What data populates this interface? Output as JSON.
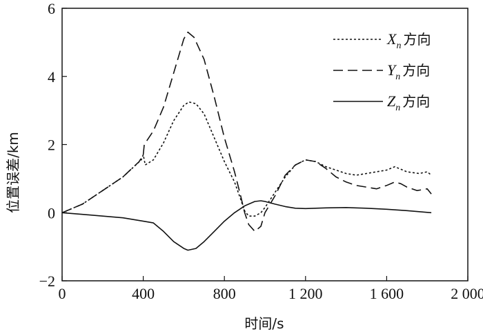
{
  "chart_data": {
    "type": "line",
    "title": "",
    "xlabel": "时间/s",
    "ylabel": "位置误差/km",
    "xlim": [
      0,
      2000
    ],
    "ylim": [
      -2,
      6
    ],
    "xticks": [
      0,
      400,
      800,
      1200,
      1600,
      2000
    ],
    "xtick_labels": [
      "0",
      "400",
      "800",
      "1 200",
      "1 600",
      "2 000"
    ],
    "yticks": [
      -2,
      0,
      2,
      4,
      6
    ],
    "ytick_labels": [
      "−2",
      "0",
      "2",
      "4",
      "6"
    ],
    "grid": false,
    "legend_position": "top-right",
    "series": [
      {
        "name": "Xn方向",
        "legend_var": "X",
        "legend_sub": "n",
        "legend_suffix": "方向",
        "dash": "3,3",
        "points": [
          [
            0,
            0
          ],
          [
            100,
            0.25
          ],
          [
            200,
            0.65
          ],
          [
            300,
            1.05
          ],
          [
            390,
            1.55
          ],
          [
            400,
            1.7
          ],
          [
            410,
            1.4
          ],
          [
            450,
            1.55
          ],
          [
            500,
            2.05
          ],
          [
            550,
            2.7
          ],
          [
            600,
            3.15
          ],
          [
            625,
            3.25
          ],
          [
            660,
            3.2
          ],
          [
            700,
            2.9
          ],
          [
            750,
            2.2
          ],
          [
            800,
            1.5
          ],
          [
            850,
            0.9
          ],
          [
            880,
            0.4
          ],
          [
            900,
            0.05
          ],
          [
            920,
            -0.1
          ],
          [
            950,
            -0.1
          ],
          [
            980,
            0.0
          ],
          [
            1000,
            0.15
          ],
          [
            1050,
            0.6
          ],
          [
            1100,
            1.05
          ],
          [
            1150,
            1.4
          ],
          [
            1200,
            1.55
          ],
          [
            1250,
            1.5
          ],
          [
            1300,
            1.35
          ],
          [
            1350,
            1.25
          ],
          [
            1400,
            1.15
          ],
          [
            1450,
            1.1
          ],
          [
            1500,
            1.15
          ],
          [
            1550,
            1.2
          ],
          [
            1600,
            1.25
          ],
          [
            1640,
            1.35
          ],
          [
            1660,
            1.3
          ],
          [
            1700,
            1.2
          ],
          [
            1760,
            1.15
          ],
          [
            1800,
            1.2
          ],
          [
            1820,
            1.1
          ]
        ]
      },
      {
        "name": "Yn方向",
        "legend_var": "Y",
        "legend_sub": "n",
        "legend_suffix": "方向",
        "dash": "14,7",
        "points": [
          [
            0,
            0
          ],
          [
            100,
            0.25
          ],
          [
            200,
            0.65
          ],
          [
            300,
            1.05
          ],
          [
            380,
            1.5
          ],
          [
            400,
            1.7
          ],
          [
            405,
            2.0
          ],
          [
            450,
            2.4
          ],
          [
            500,
            3.1
          ],
          [
            550,
            4.1
          ],
          [
            600,
            5.1
          ],
          [
            620,
            5.3
          ],
          [
            650,
            5.15
          ],
          [
            700,
            4.5
          ],
          [
            750,
            3.4
          ],
          [
            800,
            2.2
          ],
          [
            850,
            1.2
          ],
          [
            880,
            0.5
          ],
          [
            900,
            0.0
          ],
          [
            920,
            -0.35
          ],
          [
            950,
            -0.55
          ],
          [
            980,
            -0.4
          ],
          [
            1000,
            0.0
          ],
          [
            1050,
            0.5
          ],
          [
            1100,
            1.1
          ],
          [
            1150,
            1.4
          ],
          [
            1200,
            1.55
          ],
          [
            1250,
            1.5
          ],
          [
            1300,
            1.3
          ],
          [
            1350,
            1.05
          ],
          [
            1400,
            0.9
          ],
          [
            1450,
            0.8
          ],
          [
            1500,
            0.75
          ],
          [
            1550,
            0.7
          ],
          [
            1600,
            0.8
          ],
          [
            1640,
            0.9
          ],
          [
            1670,
            0.85
          ],
          [
            1700,
            0.75
          ],
          [
            1750,
            0.65
          ],
          [
            1800,
            0.7
          ],
          [
            1820,
            0.55
          ]
        ]
      },
      {
        "name": "Zn方向",
        "legend_var": "Z",
        "legend_sub": "n",
        "legend_suffix": "方向",
        "dash": "",
        "points": [
          [
            0,
            0
          ],
          [
            100,
            -0.05
          ],
          [
            200,
            -0.1
          ],
          [
            300,
            -0.15
          ],
          [
            400,
            -0.25
          ],
          [
            450,
            -0.3
          ],
          [
            500,
            -0.55
          ],
          [
            550,
            -0.85
          ],
          [
            600,
            -1.05
          ],
          [
            620,
            -1.1
          ],
          [
            660,
            -1.05
          ],
          [
            700,
            -0.85
          ],
          [
            750,
            -0.55
          ],
          [
            800,
            -0.25
          ],
          [
            850,
            0.0
          ],
          [
            900,
            0.2
          ],
          [
            950,
            0.33
          ],
          [
            980,
            0.35
          ],
          [
            1000,
            0.33
          ],
          [
            1050,
            0.25
          ],
          [
            1100,
            0.18
          ],
          [
            1150,
            0.13
          ],
          [
            1200,
            0.12
          ],
          [
            1300,
            0.14
          ],
          [
            1400,
            0.15
          ],
          [
            1500,
            0.13
          ],
          [
            1600,
            0.1
          ],
          [
            1700,
            0.06
          ],
          [
            1820,
            0.0
          ]
        ]
      }
    ]
  }
}
